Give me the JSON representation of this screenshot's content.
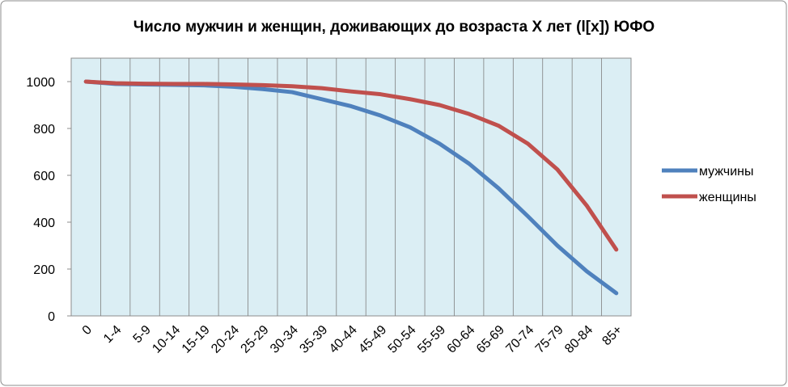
{
  "chart_data": {
    "type": "line",
    "title": "Число мужчин и женщин, доживающих до возраста X лет (l[x]) ЮФО",
    "categories": [
      "0",
      "1-4",
      "5-9",
      "10-14",
      "15-19",
      "20-24",
      "25-29",
      "30-34",
      "35-39",
      "40-44",
      "45-49",
      "50-54",
      "55-59",
      "60-64",
      "65-69",
      "70-74",
      "75-79",
      "80-84",
      "85+"
    ],
    "series": [
      {
        "name": "мужчины",
        "color": "#4f81bd",
        "values": [
          1000,
          990,
          988,
          986,
          984,
          978,
          968,
          955,
          925,
          895,
          855,
          805,
          735,
          650,
          545,
          425,
          300,
          190,
          97
        ]
      },
      {
        "name": "женщины",
        "color": "#c0504d",
        "values": [
          1000,
          993,
          991,
          990,
          990,
          988,
          985,
          980,
          972,
          958,
          946,
          925,
          900,
          862,
          812,
          735,
          625,
          470,
          283
        ]
      }
    ],
    "ylim": [
      0,
      1100
    ],
    "yticks": [
      0,
      200,
      400,
      600,
      800,
      1000
    ],
    "grid": true,
    "legend": "right"
  }
}
